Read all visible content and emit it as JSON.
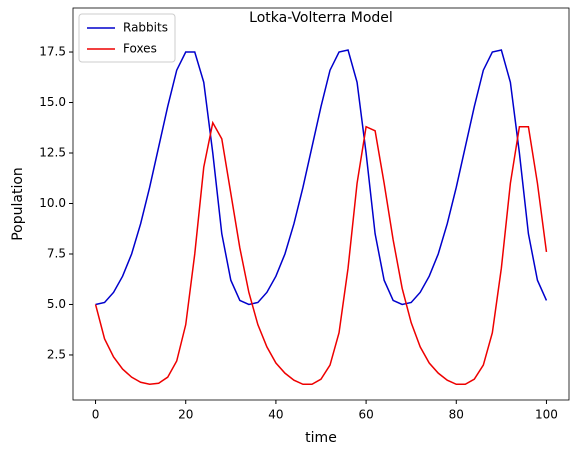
{
  "chart_data": {
    "type": "line",
    "title": "Lotka-Volterra Model",
    "x_label": "time",
    "y_label": "Population",
    "x": [
      0,
      2,
      4,
      6,
      8,
      10,
      12,
      14,
      16,
      18,
      20,
      22,
      24,
      26,
      28,
      30,
      32,
      34,
      36,
      38,
      40,
      42,
      44,
      46,
      48,
      50,
      52,
      54,
      56,
      58,
      60,
      62,
      64,
      66,
      68,
      70,
      72,
      74,
      76,
      78,
      80,
      82,
      84,
      86,
      88,
      90,
      92,
      94,
      96,
      98,
      100
    ],
    "series": [
      {
        "name": "Rabbits",
        "color": "#0000cc",
        "values": [
          5.0,
          5.1,
          5.6,
          6.4,
          7.5,
          9.0,
          10.8,
          12.8,
          14.8,
          16.6,
          17.5,
          17.5,
          16.0,
          12.5,
          8.5,
          6.2,
          5.2,
          5.0,
          5.1,
          5.6,
          6.4,
          7.5,
          9.0,
          10.8,
          12.8,
          14.8,
          16.6,
          17.5,
          17.6,
          16.0,
          12.5,
          8.5,
          6.2,
          5.2,
          5.0,
          5.1,
          5.6,
          6.4,
          7.5,
          9.0,
          10.8,
          12.8,
          14.8,
          16.6,
          17.5,
          17.6,
          16.0,
          12.5,
          8.5,
          6.2,
          5.2
        ]
      },
      {
        "name": "Foxes",
        "color": "#ee0000",
        "values": [
          5.0,
          3.3,
          2.4,
          1.8,
          1.4,
          1.15,
          1.05,
          1.1,
          1.4,
          2.2,
          4.0,
          7.5,
          11.8,
          14.0,
          13.2,
          10.5,
          7.8,
          5.6,
          4.0,
          2.9,
          2.1,
          1.6,
          1.25,
          1.05,
          1.05,
          1.3,
          2.0,
          3.6,
          6.8,
          11.0,
          13.8,
          13.6,
          11.0,
          8.2,
          5.8,
          4.1,
          2.9,
          2.1,
          1.6,
          1.25,
          1.05,
          1.05,
          1.3,
          2.0,
          3.6,
          6.8,
          11.0,
          13.8,
          13.8,
          11.0,
          7.6
        ]
      }
    ],
    "xlim": [
      -5,
      105
    ],
    "ylim": [
      0.27,
      19.68
    ],
    "xticks": [
      0,
      20,
      40,
      60,
      80,
      100
    ],
    "yticks": [
      2.5,
      {
        "value": 5,
        "label": "5.0"
      },
      7.5,
      {
        "value": 10,
        "label": "10.0"
      },
      12.5,
      {
        "value": 15,
        "label": "15.0"
      },
      17.5
    ],
    "legend": "upper left"
  }
}
